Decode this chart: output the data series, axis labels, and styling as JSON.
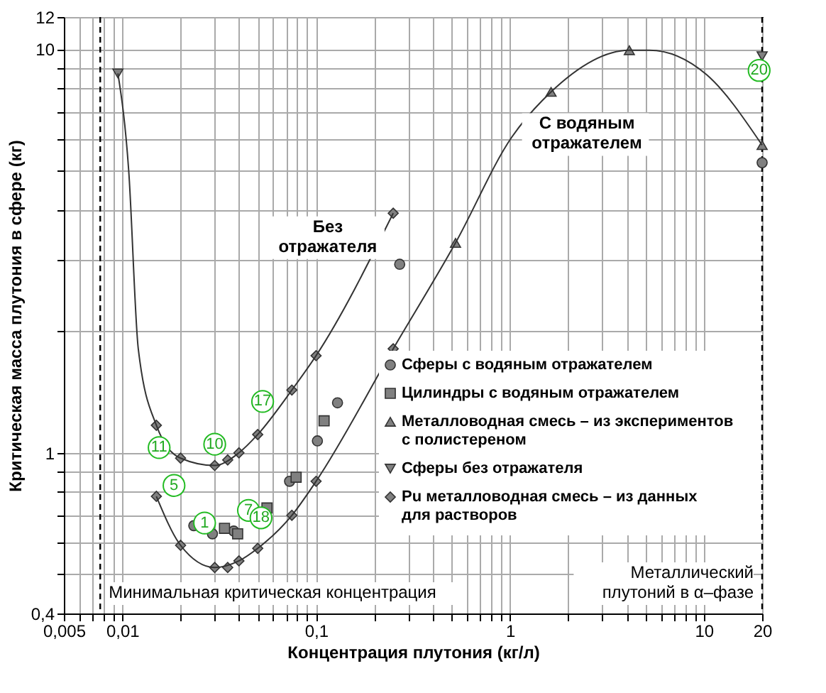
{
  "chart_data": {
    "type": "scatter",
    "xlabel": "Концентрация плутония (кг/л)",
    "ylabel": "Критическая масса плутония в сфере  (кг)",
    "log": "xy",
    "grid": true,
    "legend": "right",
    "xlim": [
      0.005,
      20
    ],
    "ylim": [
      0.4,
      12
    ],
    "xticks": [
      {
        "value": 0.005,
        "label": "0,005"
      },
      {
        "value": 0.006,
        "label": null
      },
      {
        "value": 0.007,
        "label": null
      },
      {
        "value": 0.008,
        "label": null
      },
      {
        "value": 0.009,
        "label": null
      },
      {
        "value": 0.01,
        "label": "0,01"
      },
      {
        "value": 0.02,
        "label": null
      },
      {
        "value": 0.03,
        "label": null
      },
      {
        "value": 0.04,
        "label": null
      },
      {
        "value": 0.05,
        "label": null
      },
      {
        "value": 0.06,
        "label": null
      },
      {
        "value": 0.07,
        "label": null
      },
      {
        "value": 0.08,
        "label": null
      },
      {
        "value": 0.09,
        "label": null
      },
      {
        "value": 0.1,
        "label": "0,1"
      },
      {
        "value": 0.2,
        "label": null
      },
      {
        "value": 0.3,
        "label": null
      },
      {
        "value": 0.4,
        "label": null
      },
      {
        "value": 0.5,
        "label": null
      },
      {
        "value": 0.6,
        "label": null
      },
      {
        "value": 0.7,
        "label": null
      },
      {
        "value": 0.8,
        "label": null
      },
      {
        "value": 0.9,
        "label": null
      },
      1,
      {
        "value": 2,
        "label": null
      },
      {
        "value": 3,
        "label": null
      },
      {
        "value": 4,
        "label": null
      },
      {
        "value": 5,
        "label": null
      },
      {
        "value": 6,
        "label": null
      },
      {
        "value": 7,
        "label": null
      },
      {
        "value": 8,
        "label": null
      },
      {
        "value": 9,
        "label": null
      },
      10,
      20
    ],
    "yticks": [
      {
        "value": 0.4,
        "label": "0,4"
      },
      {
        "value": 0.5,
        "label": null
      },
      {
        "value": 0.6,
        "label": null
      },
      {
        "value": 0.7,
        "label": null
      },
      {
        "value": 0.8,
        "label": null
      },
      {
        "value": 0.9,
        "label": null
      },
      1,
      {
        "value": 2,
        "label": null
      },
      {
        "value": 3,
        "label": null
      },
      {
        "value": 4,
        "label": null
      },
      {
        "value": 5,
        "label": null
      },
      {
        "value": 6,
        "label": null
      },
      {
        "value": 7,
        "label": null
      },
      {
        "value": 8,
        "label": null
      },
      {
        "value": 9,
        "label": null
      },
      10,
      12
    ],
    "series": [
      {
        "name": "Сферы с водяным отражателем",
        "marker": "circle",
        "color": "#808080",
        "x": [
          0.0234,
          0.0292,
          0.0376,
          0.073,
          0.1016,
          0.129,
          0.27,
          20
        ],
        "values": [
          0.66,
          0.63,
          0.64,
          0.85,
          1.07,
          1.33,
          2.93,
          5.23
        ]
      },
      {
        "name": "Цилиндры с водяным отражателем",
        "marker": "square",
        "color": "#808080",
        "x": [
          0.0337,
          0.0394,
          0.0558,
          0.0789,
          0.11
        ],
        "values": [
          0.65,
          0.63,
          0.73,
          0.87,
          1.2
        ]
      },
      {
        "name": "Металловодная смесь – из экспериментов\nс полистереном",
        "marker": "triangle",
        "color": "#808080",
        "x": [
          0.524,
          1.63,
          4.13,
          20
        ],
        "values": [
          3.31,
          7.83,
          9.93,
          5.78
        ]
      },
      {
        "name": "Сферы без отражателя",
        "marker": "triangle-down",
        "color": "#808080",
        "x": [
          0.0095,
          20
        ],
        "values": [
          8.7,
          9.6
        ]
      },
      {
        "name": "Pu металловодная смесь – из данных\nдля  растворов",
        "marker": "diamond",
        "color": "#808080",
        "x": [
          0.015,
          0.02,
          0.03,
          0.035,
          0.04,
          0.05,
          0.075,
          0.1,
          0.25,
          0.015,
          0.02,
          0.03,
          0.035,
          0.04,
          0.05,
          0.075,
          0.1,
          0.25
        ],
        "values": [
          1.17,
          0.97,
          0.93,
          0.96,
          1.0,
          1.11,
          1.43,
          1.74,
          3.92,
          0.78,
          0.59,
          0.52,
          0.52,
          0.54,
          0.58,
          0.7,
          0.85,
          1.81
        ]
      },
      {
        "type": "line",
        "color": "#333333",
        "x": [
          0.0095,
          0.0108,
          0.0121,
          0.015,
          0.02,
          0.03,
          0.04,
          0.05,
          0.075,
          0.1,
          0.25
        ],
        "values": [
          8.7,
          5.0,
          1.81,
          1.17,
          0.97,
          0.93,
          1.0,
          1.11,
          1.43,
          1.74,
          3.92
        ]
      },
      {
        "type": "line",
        "color": "#333333",
        "x": [
          0.015,
          0.02,
          0.03,
          0.04,
          0.05,
          0.075,
          0.1,
          0.25,
          0.524,
          1.02,
          1.63,
          4.13,
          5.24,
          10.3,
          20
        ],
        "values": [
          0.78,
          0.59,
          0.52,
          0.54,
          0.58,
          0.7,
          0.85,
          1.81,
          3.31,
          6.04,
          7.83,
          9.93,
          9.93,
          8.65,
          5.78
        ]
      }
    ],
    "ref_lines": [
      {
        "axis": "x",
        "value": 0.0077,
        "label": "Минимальная критическая концентрация",
        "line_style": "dashed",
        "color": "#000000"
      },
      {
        "axis": "x",
        "value": 20,
        "label": "Металлический\nплутоний  в α–фазе",
        "line_style": "dashed",
        "color": "#000000"
      }
    ],
    "annotations": [
      "Без\nотражателя",
      "С водяным\nотражателем",
      {
        "text": "11",
        "x": 0.0155,
        "y": 1.03
      },
      {
        "text": "10",
        "x": 0.03,
        "y": 1.05
      },
      {
        "text": "17",
        "x": 0.053,
        "y": 1.34
      },
      {
        "text": "5",
        "x": 0.0185,
        "y": 0.83
      },
      {
        "text": "1",
        "x": 0.0266,
        "y": 0.67
      },
      {
        "text": "7",
        "x": 0.0448,
        "y": 0.72
      },
      {
        "text": "18",
        "x": 0.052,
        "y": 0.69
      },
      {
        "text": "20",
        "x": 19.3,
        "y": 8.85
      }
    ]
  }
}
